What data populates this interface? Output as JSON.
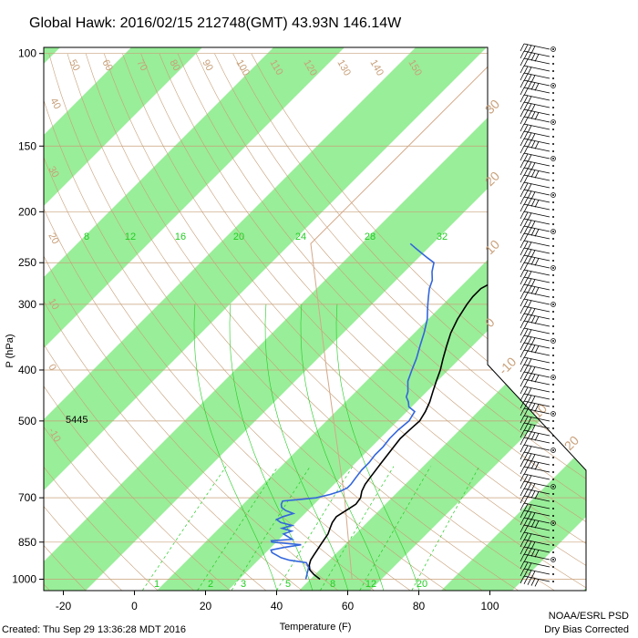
{
  "chart_data": {
    "type": "line",
    "title": "Global Hawk: 2016/02/15 212748(GMT) 43.93N 146.14W",
    "xlabel": "Temperature (F)",
    "ylabel": "P (hPa)",
    "x_ticks": [
      -20,
      0,
      20,
      40,
      60,
      80,
      100
    ],
    "x_tick_labels": [
      "-20",
      "0",
      "20",
      "40",
      "60",
      "80",
      "100"
    ],
    "y_ticks": [
      100,
      150,
      200,
      250,
      300,
      400,
      500,
      700,
      850,
      1000
    ],
    "y_tick_labels": [
      "100",
      "150",
      "200",
      "250",
      "300",
      "400",
      "500",
      "700",
      "850",
      "1000"
    ],
    "y_scale": "log",
    "xlim": [
      -28,
      124
    ],
    "ylim": [
      1050,
      100
    ],
    "height_annotation": "5445",
    "mixing_ratio_labels": [
      "8",
      "12",
      "16",
      "20",
      "24",
      "28",
      "32"
    ],
    "mixing_ratio_bottom_labels": [
      "1",
      "2",
      "3",
      "5",
      "8",
      "12",
      "20"
    ],
    "dry_adiabat_labels": [
      "50",
      "60",
      "70",
      "80",
      "90",
      "100",
      "110",
      "120",
      "130",
      "140",
      "150",
      "40",
      "30",
      "20",
      "10",
      "0",
      "-10"
    ],
    "celsius_labels": [
      "30",
      "20",
      "10",
      "0",
      "-10",
      "10",
      "20",
      "30"
    ],
    "series": [
      {
        "name": "Temperature",
        "color": "#000000",
        "points": [
          [
            1000,
            49
          ],
          [
            980,
            46
          ],
          [
            960,
            43.5
          ],
          [
            940,
            42
          ],
          [
            920,
            41
          ],
          [
            900,
            40.5
          ],
          [
            880,
            40
          ],
          [
            860,
            39.5
          ],
          [
            840,
            39
          ],
          [
            820,
            38.5
          ],
          [
            800,
            37.5
          ],
          [
            780,
            36.5
          ],
          [
            760,
            36
          ],
          [
            740,
            37
          ],
          [
            720,
            38
          ],
          [
            700,
            37.5
          ],
          [
            680,
            36
          ],
          [
            660,
            35
          ],
          [
            640,
            34.5
          ],
          [
            620,
            34
          ],
          [
            600,
            33.5
          ],
          [
            580,
            33
          ],
          [
            560,
            32.5
          ],
          [
            540,
            32
          ],
          [
            520,
            32.2
          ],
          [
            500,
            32.5
          ],
          [
            480,
            31.5
          ],
          [
            460,
            30
          ],
          [
            440,
            28
          ],
          [
            420,
            26
          ],
          [
            400,
            24
          ],
          [
            380,
            21.5
          ],
          [
            360,
            19
          ],
          [
            340,
            16.5
          ],
          [
            320,
            14.5
          ],
          [
            300,
            13
          ],
          [
            290,
            12.5
          ],
          [
            280,
            12.5
          ],
          [
            275,
            13.5
          ],
          [
            270,
            15
          ],
          [
            260,
            17
          ],
          [
            255,
            19
          ],
          [
            250,
            20.5
          ],
          [
            245,
            21
          ],
          [
            240,
            21.5
          ],
          [
            235,
            23
          ],
          [
            230,
            25
          ],
          [
            225,
            28
          ],
          [
            220,
            31
          ],
          [
            215,
            34
          ],
          [
            210,
            37
          ],
          [
            205,
            39.5
          ],
          [
            200,
            41
          ],
          [
            195,
            42
          ],
          [
            190,
            43
          ],
          [
            185,
            44
          ],
          [
            180,
            45
          ],
          [
            175,
            46
          ],
          [
            170,
            47
          ],
          [
            165,
            48.5
          ],
          [
            160,
            51
          ],
          [
            155,
            54
          ],
          [
            150,
            57
          ],
          [
            140,
            59
          ],
          [
            130,
            62
          ],
          [
            120,
            66
          ],
          [
            112,
            68.5
          ],
          [
            105,
            70
          ]
        ]
      },
      {
        "name": "Dewpoint",
        "color": "#3366dd",
        "points": [
          [
            1000,
            45
          ],
          [
            970,
            43.5
          ],
          [
            950,
            42.5
          ],
          [
            930,
            40.5
          ],
          [
            920,
            35
          ],
          [
            910,
            32
          ],
          [
            900,
            30
          ],
          [
            890,
            28
          ],
          [
            880,
            27
          ],
          [
            870,
            30
          ],
          [
            860,
            34
          ],
          [
            850,
            25
          ],
          [
            845,
            24.5
          ],
          [
            840,
            30
          ],
          [
            830,
            28
          ],
          [
            820,
            26
          ],
          [
            810,
            27.5
          ],
          [
            800,
            24
          ],
          [
            790,
            26
          ],
          [
            780,
            22
          ],
          [
            770,
            20
          ],
          [
            760,
            21
          ],
          [
            750,
            23
          ],
          [
            740,
            20
          ],
          [
            730,
            18
          ],
          [
            720,
            17
          ],
          [
            710,
            16.5
          ],
          [
            705,
            21
          ],
          [
            700,
            25
          ],
          [
            690,
            28
          ],
          [
            680,
            30
          ],
          [
            670,
            31
          ],
          [
            660,
            31
          ],
          [
            640,
            30.5
          ],
          [
            620,
            30
          ],
          [
            600,
            30
          ],
          [
            580,
            29.5
          ],
          [
            560,
            29.5
          ],
          [
            540,
            29
          ],
          [
            520,
            29
          ],
          [
            500,
            29.5
          ],
          [
            480,
            28.5
          ],
          [
            470,
            25.5
          ],
          [
            460,
            24
          ],
          [
            450,
            22
          ],
          [
            440,
            21
          ],
          [
            430,
            19.5
          ],
          [
            420,
            18
          ],
          [
            400,
            16
          ],
          [
            380,
            14
          ],
          [
            360,
            11.5
          ],
          [
            340,
            9
          ],
          [
            320,
            6
          ],
          [
            310,
            4
          ],
          [
            300,
            2
          ],
          [
            290,
            0
          ],
          [
            280,
            -2
          ],
          [
            270,
            -3.5
          ],
          [
            260,
            -6
          ],
          [
            250,
            -8
          ],
          [
            245,
            -11
          ],
          [
            240,
            -14
          ],
          [
            235,
            -17
          ],
          [
            230,
            -20
          ]
        ]
      }
    ],
    "wind_barbs": "right-side column",
    "footer_left": "Created: Thu Sep 29 13:36:28 MDT 2016",
    "footer_right_1": "NOAA/ESRL PSD",
    "footer_right_2": "Dry Bias Corrected",
    "colors": {
      "band_green": "#99ee99",
      "adiabat": "#c8a07a",
      "mixing": "#22cc22",
      "temperature": "#000000",
      "dewpoint": "#3366dd"
    }
  }
}
